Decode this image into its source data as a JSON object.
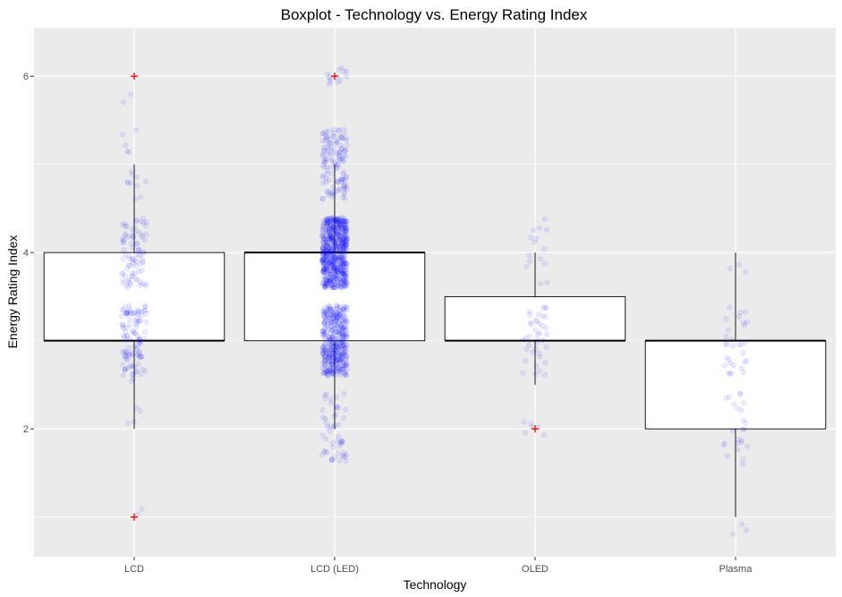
{
  "chart_data": {
    "type": "boxplot",
    "title": "Boxplot - Technology vs. Energy Rating Index",
    "xlabel": "Technology",
    "ylabel": "Energy Rating Index",
    "categories": [
      "LCD",
      "LCD (LED)",
      "OLED",
      "Plasma"
    ],
    "ylim": [
      0.55,
      6.55
    ],
    "yticks": [
      2,
      4,
      6
    ],
    "grid": true,
    "boxes": [
      {
        "category": "LCD",
        "q1": 3,
        "median": 3,
        "q3": 4,
        "whisker_low": 2,
        "whisker_high": 5,
        "outliers": [
          6,
          1
        ]
      },
      {
        "category": "LCD (LED)",
        "q1": 3,
        "median": 4,
        "q3": 4,
        "whisker_low": 2,
        "whisker_high": 5,
        "outliers": [
          6
        ]
      },
      {
        "category": "OLED",
        "q1": 3,
        "median": 3,
        "q3": 3.5,
        "whisker_low": 2.5,
        "whisker_high": 4,
        "outliers": [
          2
        ]
      },
      {
        "category": "Plasma",
        "q1": 2,
        "median": 3,
        "q3": 3,
        "whisker_low": 1,
        "whisker_high": 4,
        "outliers": []
      }
    ],
    "jitter_points": [
      {
        "category": "LCD",
        "count": 220,
        "clusters": [
          [
            2.6,
            3.4,
            0.5
          ],
          [
            3.6,
            4.4,
            0.38
          ],
          [
            4.6,
            5.4,
            0.07
          ],
          [
            1.6,
            2.3,
            0.02
          ],
          [
            0.9,
            1.1,
            0.01
          ],
          [
            5.6,
            5.8,
            0.01
          ],
          [
            2.4,
            2.6,
            0.01
          ]
        ]
      },
      {
        "category": "LCD (LED)",
        "count": 1300,
        "clusters": [
          [
            3.6,
            4.4,
            0.52
          ],
          [
            2.6,
            3.4,
            0.33
          ],
          [
            4.6,
            5.4,
            0.1
          ],
          [
            1.6,
            2.4,
            0.04
          ],
          [
            5.9,
            6.1,
            0.01
          ]
        ]
      },
      {
        "category": "OLED",
        "count": 60,
        "clusters": [
          [
            2.6,
            3.4,
            0.65
          ],
          [
            3.6,
            4.4,
            0.25
          ],
          [
            1.9,
            2.1,
            0.1
          ]
        ]
      },
      {
        "category": "Plasma",
        "count": 60,
        "clusters": [
          [
            2.6,
            3.4,
            0.5
          ],
          [
            1.6,
            2.4,
            0.4
          ],
          [
            3.6,
            3.9,
            0.05
          ],
          [
            0.8,
            1.0,
            0.05
          ]
        ]
      }
    ],
    "colors": {
      "panel": "#ebebeb",
      "grid": "#ffffff",
      "box_fill": "#ffffff",
      "box_stroke": "#000000",
      "points": "#0000ff",
      "outlier": "#ff0000"
    }
  }
}
